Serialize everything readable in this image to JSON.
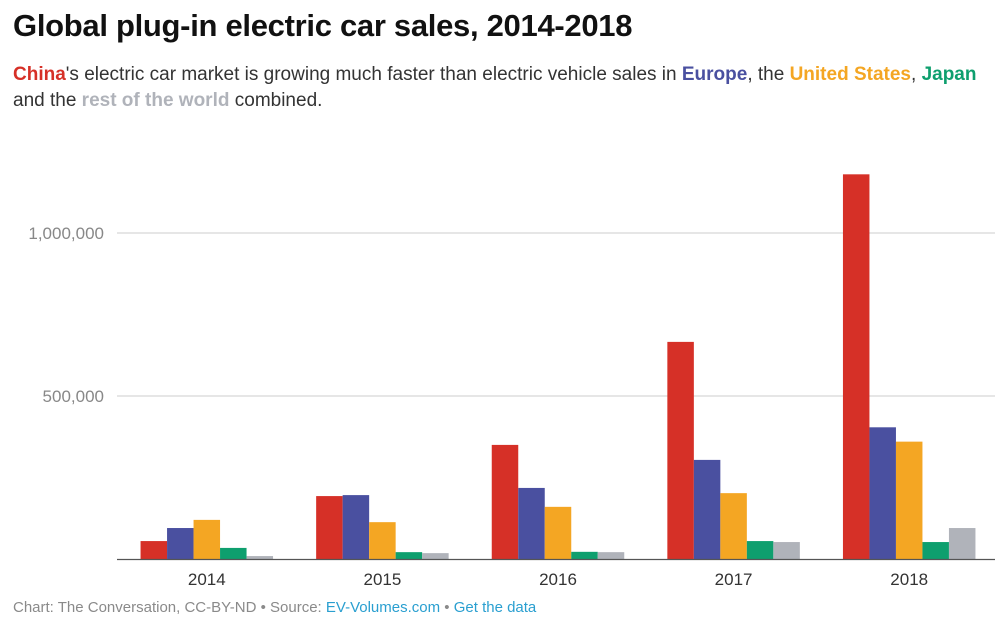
{
  "header": {
    "title": "Global plug-in electric car sales, 2014-2018",
    "subtitle": [
      {
        "text": "China",
        "series": "China"
      },
      {
        "text": "'s electric car market is growing much faster than electric vehicle sales in ",
        "series": null
      },
      {
        "text": "Europe",
        "series": "Europe"
      },
      {
        "text": ", the ",
        "series": null
      },
      {
        "text": "United States",
        "series": "United States"
      },
      {
        "text": ", ",
        "series": null
      },
      {
        "text": "Japan",
        "series": "Japan"
      },
      {
        "text": " and the ",
        "series": null
      },
      {
        "text": "rest of the world",
        "series": "Rest of the world"
      },
      {
        "text": " combined.",
        "series": null
      }
    ]
  },
  "footer": {
    "credit": "Chart: The Conversation, CC-BY-ND",
    "separator": " • ",
    "source_label": "Source: ",
    "source_link": "EV-Volumes.com",
    "data_link": "Get the data"
  },
  "chart_data": {
    "type": "bar",
    "title": "Global plug-in electric car sales, 2014-2018",
    "xlabel": "",
    "ylabel": "",
    "categories": [
      "2014",
      "2015",
      "2016",
      "2017",
      "2018"
    ],
    "ylim": [
      0,
      1200000
    ],
    "yticks": [
      500000,
      1000000
    ],
    "ytick_labels": [
      "500,000",
      "1,000,000"
    ],
    "grid": true,
    "legend": "inline-subtitle",
    "series": [
      {
        "name": "China",
        "color": "#d63027",
        "values": [
          55000,
          193000,
          350000,
          666000,
          1180000
        ]
      },
      {
        "name": "Europe",
        "color": "#4a50a0",
        "values": [
          95000,
          196000,
          218000,
          304000,
          404000
        ]
      },
      {
        "name": "United States",
        "color": "#f4a623",
        "values": [
          120000,
          113000,
          160000,
          202000,
          360000
        ]
      },
      {
        "name": "Japan",
        "color": "#0e9f6e",
        "values": [
          34000,
          21000,
          22000,
          55000,
          52000
        ]
      },
      {
        "name": "Rest of the world",
        "color": "#b0b3ba",
        "values": [
          9000,
          18000,
          21000,
          52000,
          95000
        ]
      }
    ]
  }
}
